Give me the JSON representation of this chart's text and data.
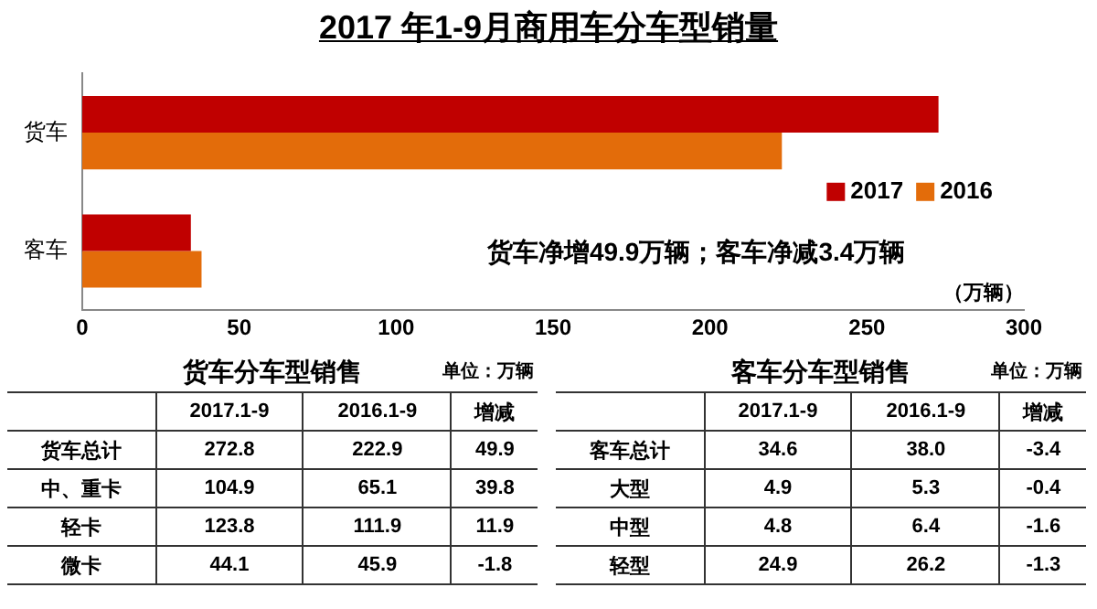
{
  "chart_data": [
    {
      "type": "bar",
      "orientation": "horizontal",
      "title": "2017 年1-9月商用车分车型销量",
      "categories": [
        "货车",
        "客车"
      ],
      "series": [
        {
          "name": "2017",
          "color": "#c00000",
          "values": [
            272.8,
            34.6
          ]
        },
        {
          "name": "2016",
          "color": "#e36c0a",
          "values": [
            222.9,
            38.0
          ]
        }
      ],
      "xlim": [
        0,
        300
      ],
      "xticks": [
        0,
        50,
        100,
        150,
        200,
        250,
        300
      ],
      "xlabel": "（万辆）",
      "legend": "right",
      "annotations": [
        "货车净增49.9万辆；客车净减3.4万辆"
      ]
    },
    {
      "type": "other",
      "title": "货车分车型销售",
      "annotations": [
        "单位：万辆"
      ],
      "categories": [
        "货车总计",
        "中、重卡",
        "轻卡",
        "微卡"
      ],
      "data_labels": true,
      "series": [
        {
          "name": "2017.1-9",
          "values": [
            272.8,
            104.9,
            123.8,
            44.1
          ]
        },
        {
          "name": "2016.1-9",
          "values": [
            222.9,
            65.1,
            111.9,
            45.9
          ]
        },
        {
          "name": "增减",
          "values": [
            49.9,
            39.8,
            11.9,
            -1.8
          ]
        }
      ]
    },
    {
      "type": "other",
      "title": "客车分车型销售",
      "annotations": [
        "单位：万辆"
      ],
      "categories": [
        "客车总计",
        "大型",
        "中型",
        "轻型"
      ],
      "data_labels": true,
      "series": [
        {
          "name": "2017.1-9",
          "values": [
            34.6,
            4.9,
            4.8,
            24.9
          ]
        },
        {
          "name": "2016.1-9",
          "values": [
            38.0,
            5.3,
            6.4,
            26.2
          ],
          "value_labels": [
            "38.0",
            "5.3",
            "6.4",
            "26.2"
          ]
        },
        {
          "name": "增减",
          "values": [
            -3.4,
            -0.4,
            -1.6,
            -1.3
          ]
        }
      ]
    }
  ]
}
